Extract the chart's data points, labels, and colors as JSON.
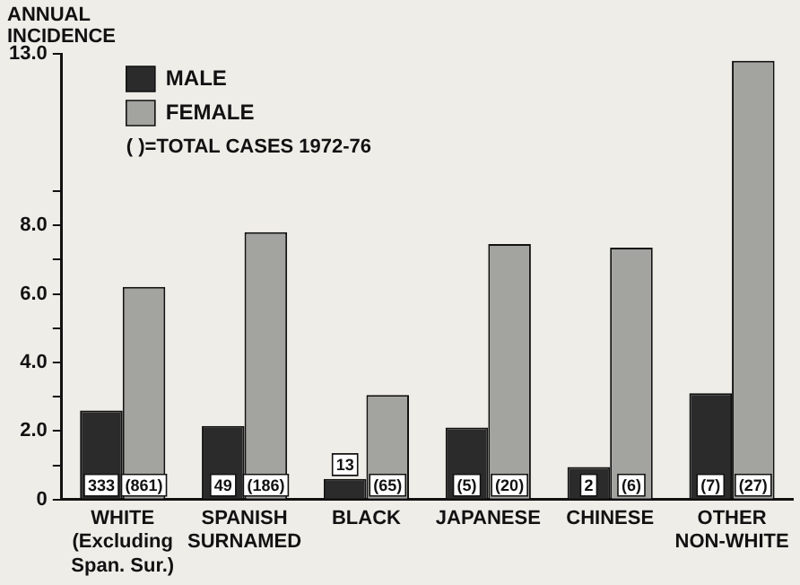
{
  "chart_data": {
    "type": "bar",
    "ylabel": "ANNUAL INCIDENCE",
    "categories": [
      "WHITE (Excluding Span. Sur.)",
      "SPANISH SURNAMED",
      "BLACK",
      "JAPANESE",
      "CHINESE",
      "OTHER NON-WHITE"
    ],
    "series": [
      {
        "name": "MALE",
        "color": "#2b2b2b",
        "values": [
          2.6,
          2.15,
          0.6,
          2.1,
          0.95,
          3.1
        ]
      },
      {
        "name": "FEMALE",
        "color": "#a3a39f",
        "values": [
          6.2,
          7.8,
          3.05,
          7.45,
          7.35,
          12.8
        ]
      }
    ],
    "ylim": [
      0,
      13
    ],
    "yticks": [
      {
        "value": 0,
        "label": "0"
      },
      {
        "value": 1,
        "label": null
      },
      {
        "value": 2,
        "label": "2.0"
      },
      {
        "value": 3,
        "label": null
      },
      {
        "value": 4,
        "label": "4.0"
      },
      {
        "value": 5,
        "label": null
      },
      {
        "value": 6,
        "label": "6.0"
      },
      {
        "value": 7,
        "label": null
      },
      {
        "value": 8,
        "label": "8.0"
      },
      {
        "value": 9,
        "label": null
      },
      {
        "value": 13,
        "label": "13.0"
      }
    ],
    "grid": false,
    "legend": "top left",
    "annotations": [
      "( )=TOTAL CASES 1972-76",
      {
        "text": "333",
        "x": "WHITE (Excluding Span. Sur.)",
        "y": 0
      },
      {
        "text": "(861)",
        "x": "WHITE (Excluding Span. Sur.)",
        "y": 0
      },
      {
        "text": "49",
        "x": "SPANISH SURNAMED",
        "y": 0
      },
      {
        "text": "(186)",
        "x": "SPANISH SURNAMED",
        "y": 0
      },
      {
        "text": "13",
        "x": "BLACK",
        "y": 0.6
      },
      {
        "text": "(65)",
        "x": "BLACK",
        "y": 0
      },
      {
        "text": "(5)",
        "x": "JAPANESE",
        "y": 0
      },
      {
        "text": "(20)",
        "x": "JAPANESE",
        "y": 0
      },
      {
        "text": "2",
        "x": "CHINESE",
        "y": 0
      },
      {
        "text": "(6)",
        "x": "CHINESE",
        "y": 0
      },
      {
        "text": "(7)",
        "x": "OTHER NON-WHITE",
        "y": 0
      },
      {
        "text": "(27)",
        "x": "OTHER NON-WHITE",
        "y": 0
      }
    ]
  }
}
